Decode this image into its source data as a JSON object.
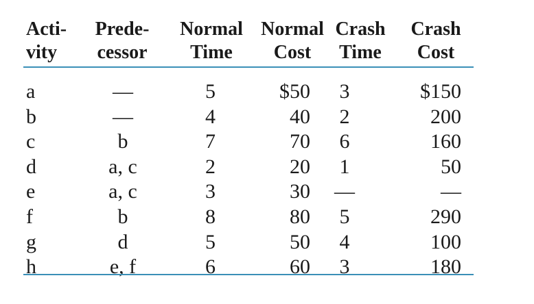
{
  "table": {
    "headers": [
      {
        "line1": "Acti-",
        "line2": "vity"
      },
      {
        "line1": "Prede-",
        "line2": "cessor"
      },
      {
        "line1": "Normal",
        "line2": "Time"
      },
      {
        "line1": "Normal",
        "line2": "Cost"
      },
      {
        "line1": "Crash",
        "line2": "Time"
      },
      {
        "line1": "Crash",
        "line2": "Cost"
      }
    ],
    "rows": [
      {
        "activity": "a",
        "predecessor": "—",
        "normal_time": "5",
        "normal_cost": "$50",
        "crash_time": "3",
        "crash_cost": "$150"
      },
      {
        "activity": "b",
        "predecessor": "—",
        "normal_time": "4",
        "normal_cost": "40",
        "crash_time": "2",
        "crash_cost": "200"
      },
      {
        "activity": "c",
        "predecessor": "b",
        "normal_time": "7",
        "normal_cost": "70",
        "crash_time": "6",
        "crash_cost": "160"
      },
      {
        "activity": "d",
        "predecessor": "a, c",
        "normal_time": "2",
        "normal_cost": "20",
        "crash_time": "1",
        "crash_cost": "50"
      },
      {
        "activity": "e",
        "predecessor": "a, c",
        "normal_time": "3",
        "normal_cost": "30",
        "crash_time": "—",
        "crash_cost": "—"
      },
      {
        "activity": "f",
        "predecessor": "b",
        "normal_time": "8",
        "normal_cost": "80",
        "crash_time": "5",
        "crash_cost": "290"
      },
      {
        "activity": "g",
        "predecessor": "d",
        "normal_time": "5",
        "normal_cost": "50",
        "crash_time": "4",
        "crash_cost": "100"
      },
      {
        "activity": "h",
        "predecessor": "e, f",
        "normal_time": "6",
        "normal_cost": "60",
        "crash_time": "3",
        "crash_cost": "180"
      }
    ],
    "rule_color": "#3a8fb7"
  }
}
